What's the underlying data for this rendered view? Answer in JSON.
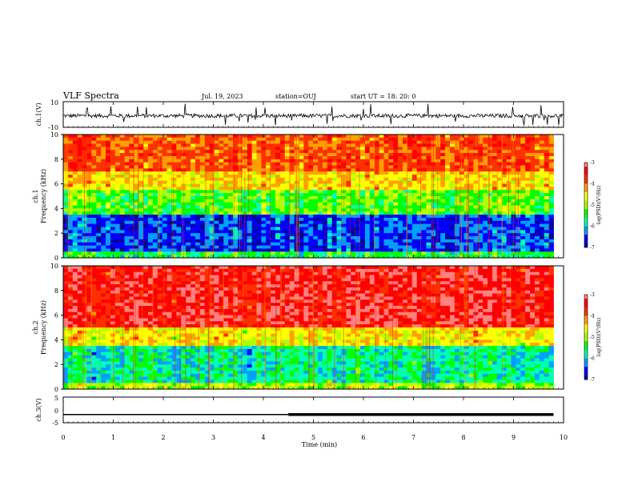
{
  "header": {
    "title": "VLF Spectra",
    "date": "Jul. 19, 2023",
    "station": "station=OUJ",
    "start": "start UT = 18: 20: 0"
  },
  "colors": {
    "background": "#ffffff",
    "axis": "#000000",
    "colormap": [
      "#0000a0",
      "#0000ff",
      "#00a0ff",
      "#00ffb0",
      "#00ff00",
      "#b0ff00",
      "#ffff00",
      "#ffa000",
      "#ff3000",
      "#ff0000",
      "#ff8080"
    ]
  },
  "chart_data": [
    {
      "type": "line",
      "panel": "ch1-waveform",
      "ylabel": "ch.1(V)",
      "ylim": [
        -10,
        10
      ],
      "yticks": [
        "10",
        "-10"
      ],
      "x_range_min": [
        0,
        10
      ],
      "series": [
        {
          "description": "ch.1 waveform, mean about -1 V with spikes to about +8 and -9 V"
        }
      ]
    },
    {
      "type": "heatmap",
      "panel": "ch1-spectrogram",
      "ylabel": "ch.1\nFrequency (kHz)",
      "ylim": [
        0,
        10
      ],
      "yticks": [
        "0",
        "2",
        "4",
        "6",
        "8",
        "10"
      ],
      "x_range_min": [
        0,
        9.8
      ],
      "colorbar": {
        "label": "log(PSD)(V²/Hz)",
        "range": [
          -7,
          -3
        ],
        "ticks": [
          "-3",
          "-4",
          "-5",
          "-6",
          "-7"
        ]
      },
      "bands": [
        {
          "f_khz": [
            0,
            0.4
          ],
          "log_psd": -5.5
        },
        {
          "f_khz": [
            0.4,
            3.6
          ],
          "log_psd": -6.5
        },
        {
          "f_khz": [
            3.6,
            5.5
          ],
          "log_psd": -5.3
        },
        {
          "f_khz": [
            5.5,
            7
          ],
          "log_psd": -4.5
        },
        {
          "f_khz": [
            7,
            10
          ],
          "log_psd": -3.9
        }
      ]
    },
    {
      "type": "heatmap",
      "panel": "ch2-spectrogram",
      "ylabel": "ch.2\nFrequency (kHz)",
      "ylim": [
        0,
        10
      ],
      "yticks": [
        "0",
        "2",
        "4",
        "6",
        "8",
        "10"
      ],
      "x_range_min": [
        0,
        9.8
      ],
      "colorbar": {
        "label": "log(PSD)(V²/Hz)",
        "range": [
          -7,
          -3
        ],
        "ticks": [
          "-3",
          "-4",
          "-5",
          "-6",
          "-7"
        ]
      },
      "bands": [
        {
          "f_khz": [
            0,
            0.4
          ],
          "log_psd": -5.0
        },
        {
          "f_khz": [
            0.4,
            3.4
          ],
          "log_psd": -5.8
        },
        {
          "f_khz": [
            3.4,
            5
          ],
          "log_psd": -4.6
        },
        {
          "f_khz": [
            5,
            10
          ],
          "log_psd": -3.4
        }
      ]
    },
    {
      "type": "line",
      "panel": "ch3-waveform",
      "ylabel": "ch.3(V)",
      "ylim": [
        -5,
        5
      ],
      "yticks": [
        "5",
        "0",
        "-5"
      ],
      "xlabel": "Time (min)",
      "xticks": [
        "0",
        "1",
        "2",
        "3",
        "4",
        "5",
        "6",
        "7",
        "8",
        "9",
        "10"
      ],
      "series": [
        {
          "x_min": [
            0,
            4.5
          ],
          "y": -1.8,
          "weight": "thin"
        },
        {
          "x_min": [
            4.5,
            9.8
          ],
          "y": -1.8,
          "weight": "thick"
        }
      ]
    }
  ]
}
